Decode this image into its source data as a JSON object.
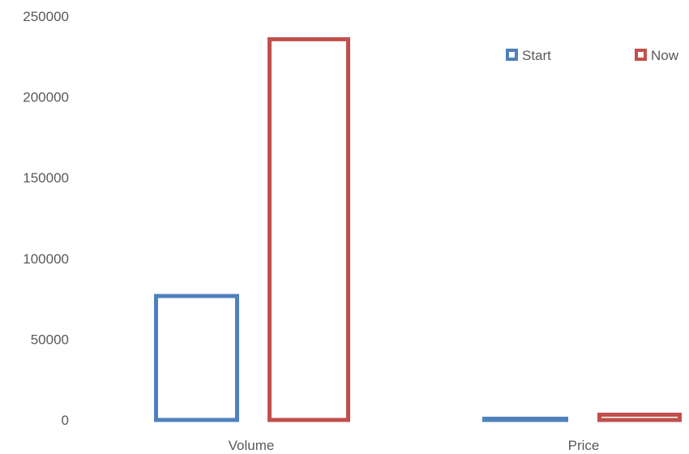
{
  "chart_data": {
    "type": "bar",
    "categories": [
      "Volume",
      "Price"
    ],
    "series": [
      {
        "name": "Start",
        "values": [
          78000,
          2000
        ],
        "color": "#4F81BD"
      },
      {
        "name": "Now",
        "values": [
          237000,
          4500
        ],
        "color": "#C0504D"
      }
    ],
    "title": "",
    "xlabel": "",
    "ylabel": "",
    "ylim": [
      0,
      250000
    ],
    "yticks": [
      "0",
      "50000",
      "100000",
      "150000",
      "200000",
      "250000"
    ],
    "grid": false,
    "bar_style": "outline",
    "legend_position": "top-right"
  }
}
